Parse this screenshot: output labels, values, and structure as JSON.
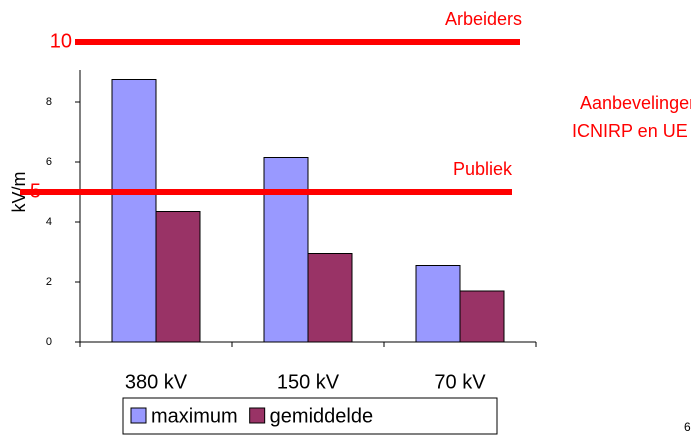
{
  "chart_data": {
    "type": "bar",
    "y_label": "kV/m",
    "categories": [
      "380 kV",
      "150 kV",
      "70 kV"
    ],
    "series": [
      {
        "name": "maximum",
        "color": "#9999ff",
        "values": [
          8.75,
          6.15,
          2.55
        ]
      },
      {
        "name": "gemiddelde",
        "color": "#993366",
        "values": [
          4.35,
          2.95,
          1.7
        ]
      }
    ],
    "ylim": [
      0,
      10
    ],
    "yticks": [
      0,
      2,
      4,
      6,
      8
    ],
    "reference_lines": [
      {
        "value": 10,
        "label": "Arbeiders",
        "color": "#ff0000"
      },
      {
        "value": 5,
        "label": "Publiek",
        "color": "#ff0000"
      }
    ],
    "annotation": [
      "Aanbevelingen",
      "ICNIRP en UE"
    ],
    "legend": "bottom"
  },
  "page_number": "6"
}
